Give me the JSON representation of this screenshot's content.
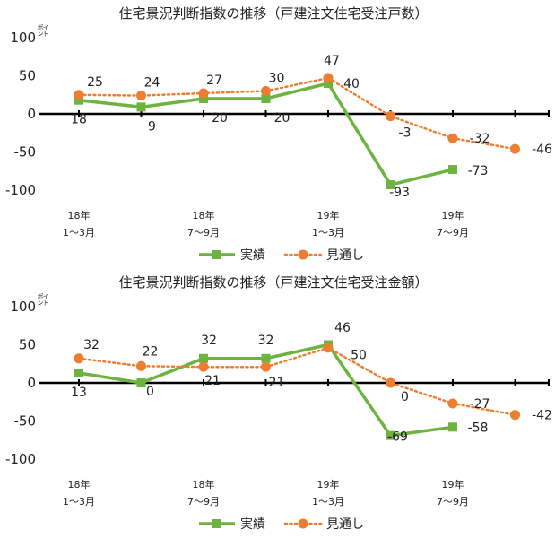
{
  "chart_data": [
    {
      "type": "line",
      "title": "住宅景況判断指数の推移（戸建注文住宅受注戸数）",
      "unit_label": "ポイント",
      "ylim": [
        -100,
        100
      ],
      "yticks": [
        100,
        50,
        0,
        -50,
        -100
      ],
      "x": [
        0,
        1,
        2,
        3,
        4,
        5,
        6,
        7
      ],
      "xtick_labels": [
        {
          "pos": 0,
          "line1": "18年",
          "line2": "1～3月"
        },
        {
          "pos": 2,
          "line1": "18年",
          "line2": "7～9月"
        },
        {
          "pos": 4,
          "line1": "19年",
          "line2": "1～3月"
        },
        {
          "pos": 6,
          "line1": "19年",
          "line2": "7～9月"
        }
      ],
      "legend": {
        "position": "bottom-center",
        "entries": [
          "実績",
          "見通し"
        ]
      },
      "grid": false,
      "series": [
        {
          "name": "実績",
          "color": "#6db33f",
          "marker": "square",
          "style": "solid",
          "values": [
            18,
            9,
            20,
            20,
            40,
            -93,
            -73,
            null
          ],
          "labels": [
            "18",
            "9",
            "20",
            "20",
            "40",
            "-93",
            "-73",
            ""
          ]
        },
        {
          "name": "見通し",
          "color": "#ed7d31",
          "marker": "circle",
          "style": "dotted",
          "values": [
            25,
            24,
            27,
            30,
            47,
            -3,
            -32,
            -46
          ],
          "labels": [
            "25",
            "24",
            "27",
            "30",
            "47",
            "-3",
            "-32",
            "-46"
          ]
        }
      ]
    },
    {
      "type": "line",
      "title": "住宅景況判断指数の推移（戸建注文住宅受注金額）",
      "unit_label": "ポイント",
      "ylim": [
        -100,
        100
      ],
      "yticks": [
        100,
        50,
        0,
        -50,
        -100
      ],
      "x": [
        0,
        1,
        2,
        3,
        4,
        5,
        6,
        7
      ],
      "xtick_labels": [
        {
          "pos": 0,
          "line1": "18年",
          "line2": "1～3月"
        },
        {
          "pos": 2,
          "line1": "18年",
          "line2": "7～9月"
        },
        {
          "pos": 4,
          "line1": "19年",
          "line2": "1～3月"
        },
        {
          "pos": 6,
          "line1": "19年",
          "line2": "7～9月"
        }
      ],
      "legend": {
        "position": "bottom-center",
        "entries": [
          "実績",
          "見通し"
        ]
      },
      "grid": false,
      "series": [
        {
          "name": "実績",
          "color": "#6db33f",
          "marker": "square",
          "style": "solid",
          "values": [
            13,
            0,
            32,
            32,
            50,
            -69,
            -58,
            null
          ],
          "labels": [
            "13",
            "0",
            "32",
            "32",
            "50",
            "-69",
            "-58",
            ""
          ]
        },
        {
          "name": "見通し",
          "color": "#ed7d31",
          "marker": "circle",
          "style": "dotted",
          "values": [
            32,
            22,
            21,
            21,
            46,
            0,
            -27,
            -42
          ],
          "labels": [
            "32",
            "22",
            "21",
            "21",
            "46",
            "0",
            "-27",
            "-42"
          ]
        }
      ]
    }
  ]
}
